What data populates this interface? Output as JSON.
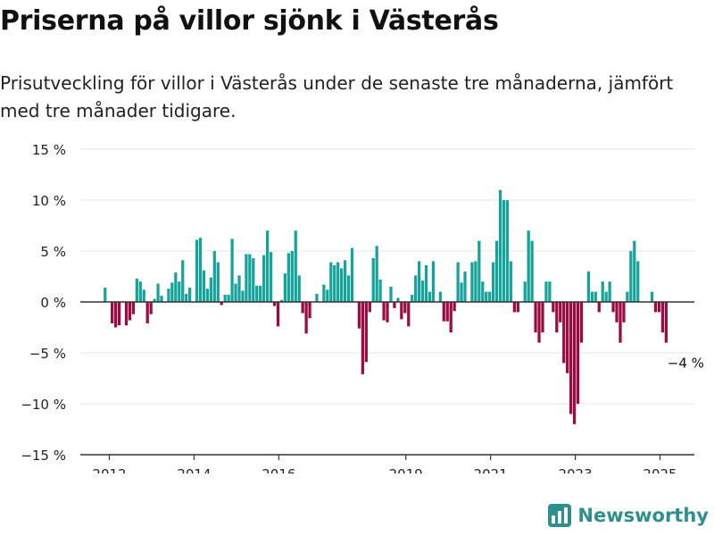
{
  "header": {
    "title": "Priserna på villor sjönk i Västerås",
    "subtitle": "Prisutveckling för villor i Västerås under de senaste tre månaderna, jämfört med tre månader tidigare."
  },
  "logo": {
    "name": "Newsworthy",
    "icon": "bar-chart-logo-icon"
  },
  "colors": {
    "positive": "#16a39a",
    "negative": "#9b0a40",
    "zero_line": "#333333",
    "grid": "#e6e6e6"
  },
  "chart_data": {
    "type": "bar",
    "x_start": 2011.9,
    "x_step": 0.0833,
    "ylim": [
      -15,
      15
    ],
    "yticks": [
      15,
      10,
      5,
      0,
      -5,
      -10,
      -15
    ],
    "ytick_labels": [
      "15 %",
      "10 %",
      "5 %",
      "0 %",
      "−5 %",
      "−10 %",
      "−15 %"
    ],
    "xticks": [
      2012,
      2014,
      2016,
      2019,
      2021,
      2023,
      2025
    ],
    "xtick_labels": [
      "2012",
      "2014",
      "2016",
      "2019",
      "2021",
      "2023",
      "2025"
    ],
    "annotation": {
      "label": "−4 %",
      "value": -4
    },
    "values": [
      1.4,
      0,
      -2.1,
      -2.5,
      -2.3,
      0,
      -2.3,
      -1.8,
      -1.2,
      2.3,
      2.0,
      1.2,
      -2.1,
      -1.2,
      0.3,
      1.8,
      0.6,
      0,
      1.3,
      1.9,
      2.9,
      2.0,
      4.1,
      0.8,
      1.4,
      0,
      6.1,
      6.3,
      3.1,
      1.3,
      2.4,
      5.0,
      3.9,
      -0.3,
      0.7,
      0.7,
      6.2,
      1.8,
      2.6,
      1.1,
      4.7,
      4.7,
      4.3,
      1.6,
      1.6,
      4.6,
      7.0,
      4.9,
      -0.4,
      -2.4,
      0.2,
      2.8,
      4.8,
      5.0,
      7.0,
      2.6,
      -1.1,
      -3.1,
      -1.6,
      0,
      0.8,
      0,
      1.7,
      1.2,
      3.9,
      3.6,
      3.9,
      3.3,
      4.1,
      2.6,
      5.3,
      0,
      -2.6,
      -7.1,
      -5.9,
      -1.0,
      4.3,
      5.5,
      2.2,
      -1.8,
      -2.0,
      1.5,
      -0.6,
      0.4,
      -1.7,
      -1.1,
      -2.4,
      0.7,
      2.6,
      4.0,
      2.1,
      3.6,
      1.0,
      4.0,
      0,
      1.0,
      -1.9,
      -1.9,
      -3.0,
      -0.9,
      3.9,
      1.9,
      3.0,
      0,
      3.9,
      4.0,
      6.0,
      2.0,
      1.0,
      1.0,
      3.9,
      6.0,
      11.0,
      10.0,
      10.0,
      4.0,
      -1.0,
      -1.0,
      0,
      2.0,
      7.0,
      6.0,
      -3.0,
      -4.0,
      -3.0,
      2.0,
      2.0,
      -1.0,
      -3.0,
      -2.0,
      -6.0,
      -7.0,
      -11.0,
      -12.0,
      -10.0,
      -4.0,
      0,
      3.0,
      1.0,
      1.0,
      -1.0,
      2.0,
      1.0,
      2.0,
      -1.0,
      -2.0,
      -4.0,
      -2.0,
      1.0,
      5.0,
      6.0,
      4.0,
      0,
      0,
      0,
      1.0,
      -1.0,
      -1.0,
      -3.0,
      -4.0
    ]
  }
}
